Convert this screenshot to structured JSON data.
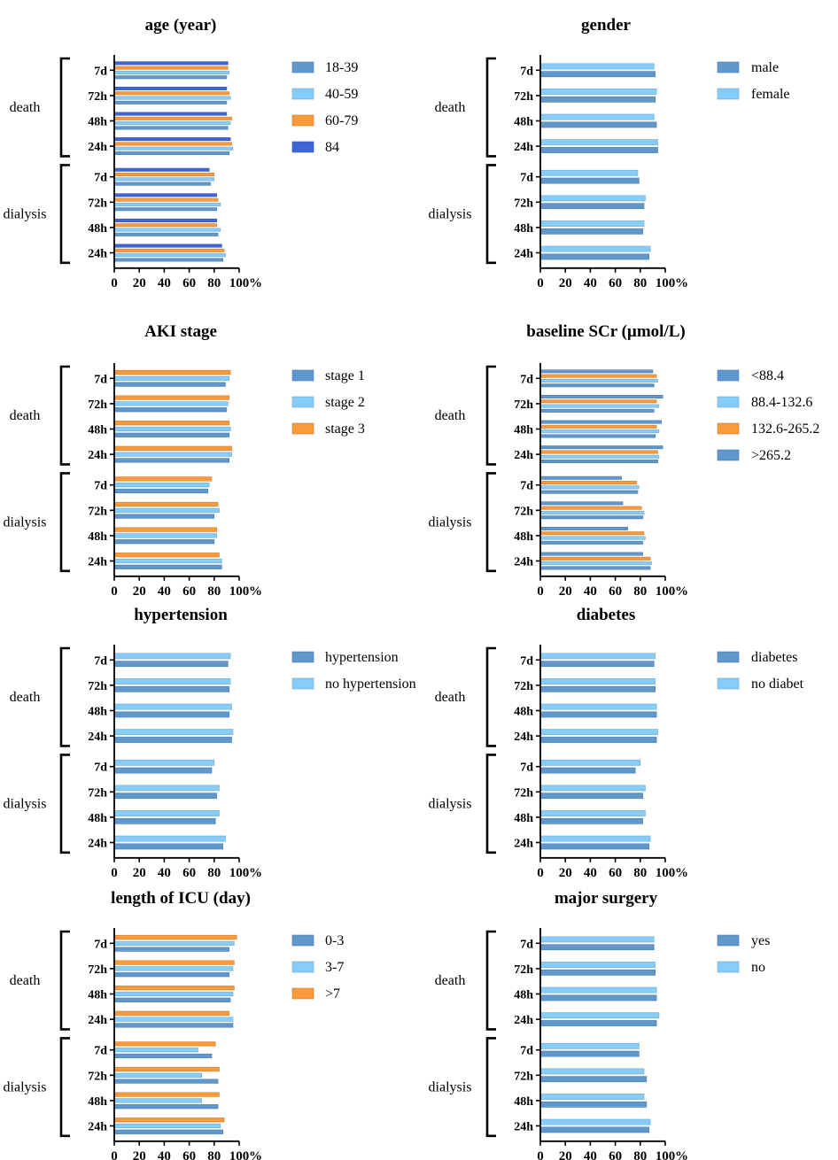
{
  "colors": {
    "c1": "#6097cc",
    "c2": "#86cdfa",
    "c3": "#fb9a3a",
    "c4": "#4065d6"
  },
  "chart_data": [
    {
      "type": "bar",
      "orientation": "horizontal",
      "title": "age (year)",
      "xlabel": "%",
      "xlim": [
        0,
        100
      ],
      "xticks": [
        "0",
        "20",
        "40",
        "60",
        "80",
        "100"
      ],
      "groups": [
        "death",
        "dialysis"
      ],
      "categories": [
        "7d",
        "72h",
        "48h",
        "24h"
      ],
      "series": [
        {
          "name": "18-39",
          "color": "c1",
          "values": [
            [
              90,
              90,
              91,
              92
            ],
            [
              77,
              82,
              83,
              87
            ]
          ]
        },
        {
          "name": "40-59",
          "color": "c2",
          "values": [
            [
              92,
              93,
              93,
              95
            ],
            [
              80,
              85,
              85,
              89
            ]
          ]
        },
        {
          "name": "60-79",
          "color": "c3",
          "values": [
            [
              91,
              92,
              94,
              94
            ],
            [
              80,
              83,
              82,
              88
            ]
          ]
        },
        {
          "name": "84",
          "color": "c4",
          "values": [
            [
              91,
              90,
              90,
              93
            ],
            [
              76,
              82,
              82,
              86
            ]
          ]
        }
      ]
    },
    {
      "type": "bar",
      "orientation": "horizontal",
      "title": "gender",
      "xlabel": "%",
      "xlim": [
        0,
        100
      ],
      "xticks": [
        "0",
        "20",
        "40",
        "60",
        "80",
        "100"
      ],
      "groups": [
        "death",
        "dialysis"
      ],
      "categories": [
        "7d",
        "72h",
        "48h",
        "24h"
      ],
      "series": [
        {
          "name": "male",
          "color": "c1",
          "values": [
            [
              92,
              92,
              93,
              94
            ],
            [
              79,
              83,
              82,
              87
            ]
          ]
        },
        {
          "name": "female",
          "color": "c2",
          "values": [
            [
              91,
              93,
              91,
              94
            ],
            [
              78,
              84,
              83,
              88
            ]
          ]
        }
      ]
    },
    {
      "type": "bar",
      "orientation": "horizontal",
      "title": "AKI stage",
      "xlabel": "%",
      "xlim": [
        0,
        100
      ],
      "xticks": [
        "0",
        "20",
        "40",
        "60",
        "80",
        "100"
      ],
      "groups": [
        "death",
        "dialysis"
      ],
      "categories": [
        "7d",
        "72h",
        "48h",
        "24h"
      ],
      "series": [
        {
          "name": "stage 1",
          "color": "c1",
          "values": [
            [
              89,
              90,
              92,
              92
            ],
            [
              75,
              80,
              80,
              86
            ]
          ]
        },
        {
          "name": "stage 2",
          "color": "c2",
          "values": [
            [
              92,
              91,
              93,
              94
            ],
            [
              76,
              84,
              82,
              86
            ]
          ]
        },
        {
          "name": "stage 3",
          "color": "c3",
          "values": [
            [
              93,
              92,
              92,
              94
            ],
            [
              78,
              83,
              82,
              84
            ]
          ]
        }
      ]
    },
    {
      "type": "bar",
      "orientation": "horizontal",
      "title": "baseline SCr (µmol/L)",
      "xlabel": "%",
      "xlim": [
        0,
        100
      ],
      "xticks": [
        "0",
        "20",
        "40",
        "60",
        "80",
        "100"
      ],
      "groups": [
        "death",
        "dialysis"
      ],
      "categories": [
        "7d",
        "72h",
        "48h",
        "24h"
      ],
      "series": [
        {
          "name": "<88.4",
          "color": "c1",
          "values": [
            [
              91,
              91,
              92,
              94
            ],
            [
              78,
              82,
              82,
              88
            ]
          ]
        },
        {
          "name": "88.4-132.6",
          "color": "c2",
          "values": [
            [
              94,
              95,
              95,
              95
            ],
            [
              79,
              83,
              84,
              89
            ]
          ]
        },
        {
          "name": "132.6-265.2",
          "color": "c3",
          "values": [
            [
              93,
              93,
              93,
              94
            ],
            [
              77,
              81,
              83,
              88
            ]
          ]
        },
        {
          "name": ">265.2",
          "color": "c1",
          "values": [
            [
              90,
              98,
              97,
              98
            ],
            [
              65,
              66,
              70,
              82
            ]
          ]
        }
      ]
    },
    {
      "type": "bar",
      "orientation": "horizontal",
      "title": "hypertension",
      "xlabel": "%",
      "xlim": [
        0,
        100
      ],
      "xticks": [
        "0",
        "20",
        "40",
        "60",
        "80",
        "100"
      ],
      "groups": [
        "death",
        "dialysis"
      ],
      "categories": [
        "7d",
        "72h",
        "48h",
        "24h"
      ],
      "series": [
        {
          "name": "hypertension",
          "color": "c1",
          "values": [
            [
              91,
              92,
              92,
              94
            ],
            [
              78,
              82,
              81,
              87
            ]
          ]
        },
        {
          "name": "no hypertension",
          "color": "c2",
          "values": [
            [
              93,
              93,
              94,
              95
            ],
            [
              80,
              84,
              84,
              89
            ]
          ]
        }
      ]
    },
    {
      "type": "bar",
      "orientation": "horizontal",
      "title": "diabetes",
      "xlabel": "%",
      "xlim": [
        0,
        100
      ],
      "xticks": [
        "0",
        "20",
        "40",
        "60",
        "80",
        "100"
      ],
      "groups": [
        "death",
        "dialysis"
      ],
      "categories": [
        "7d",
        "72h",
        "48h",
        "24h"
      ],
      "series": [
        {
          "name": "diabetes",
          "color": "c1",
          "values": [
            [
              91,
              92,
              93,
              93
            ],
            [
              76,
              82,
              82,
              87
            ]
          ]
        },
        {
          "name": "no diabet",
          "color": "c2",
          "values": [
            [
              92,
              92,
              93,
              94
            ],
            [
              80,
              84,
              84,
              88
            ]
          ]
        }
      ]
    },
    {
      "type": "bar",
      "orientation": "horizontal",
      "title": "length of ICU (day)",
      "xlabel": "%",
      "xlim": [
        0,
        100
      ],
      "xticks": [
        "0",
        "20",
        "40",
        "60",
        "80",
        "100"
      ],
      "groups": [
        "death",
        "dialysis"
      ],
      "categories": [
        "7d",
        "72h",
        "48h",
        "24h"
      ],
      "series": [
        {
          "name": "0-3",
          "color": "c1",
          "values": [
            [
              92,
              92,
              93,
              95
            ],
            [
              78,
              83,
              83,
              87
            ]
          ]
        },
        {
          "name": "3-7",
          "color": "c2",
          "values": [
            [
              96,
              95,
              95,
              95
            ],
            [
              67,
              70,
              70,
              85
            ]
          ]
        },
        {
          "name": ">7",
          "color": "c3",
          "values": [
            [
              98,
              96,
              96,
              92
            ],
            [
              81,
              84,
              84,
              88
            ]
          ]
        }
      ]
    },
    {
      "type": "bar",
      "orientation": "horizontal",
      "title": "major surgery",
      "xlabel": "%",
      "xlim": [
        0,
        100
      ],
      "xticks": [
        "0",
        "20",
        "40",
        "60",
        "80",
        "100"
      ],
      "groups": [
        "death",
        "dialysis"
      ],
      "categories": [
        "7d",
        "72h",
        "48h",
        "24h"
      ],
      "series": [
        {
          "name": "yes",
          "color": "c1",
          "values": [
            [
              91,
              92,
              93,
              93
            ],
            [
              79,
              85,
              85,
              87
            ]
          ]
        },
        {
          "name": "no",
          "color": "c2",
          "values": [
            [
              91,
              92,
              93,
              95
            ],
            [
              79,
              83,
              83,
              88
            ]
          ]
        }
      ]
    }
  ]
}
